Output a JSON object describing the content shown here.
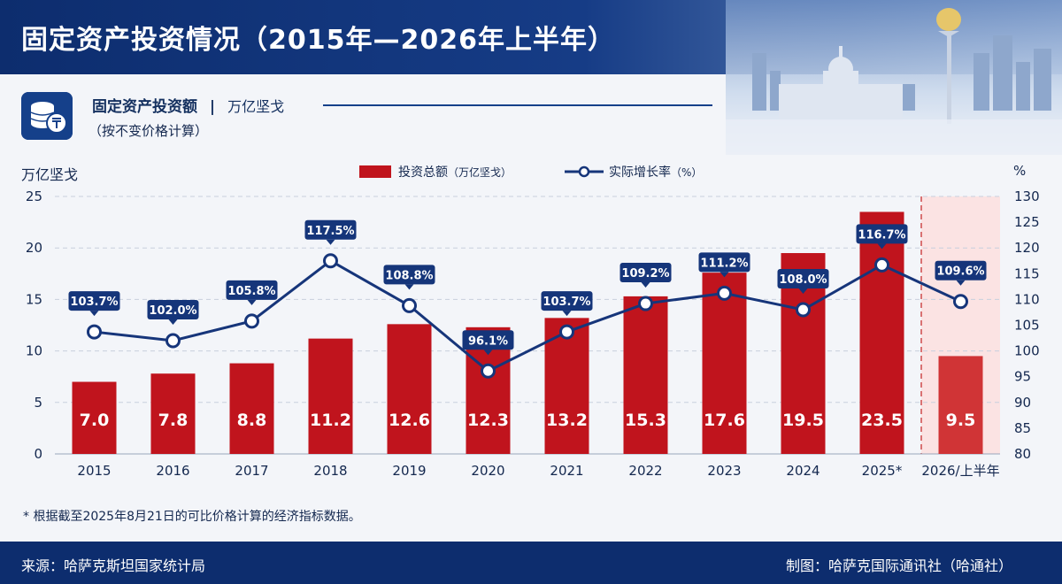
{
  "header": {
    "title": "固定资产投资情况（2015年—2026年上半年）"
  },
  "subheader": {
    "title": "固定资产投资额",
    "separator": "|",
    "unit": "万亿坚戈",
    "subtitle": "（按不变价格计算）"
  },
  "chart_data": {
    "type": "bar",
    "categories": [
      "2015",
      "2016",
      "2017",
      "2018",
      "2019",
      "2020",
      "2021",
      "2022",
      "2023",
      "2024",
      "2025*",
      "2026/上半年"
    ],
    "left_axis_unit": "万亿坚戈",
    "right_axis_unit": "%",
    "ylim": [
      0,
      25
    ],
    "yticks": [
      "0",
      "5",
      "10",
      "15",
      "20",
      "25"
    ],
    "y2lim": [
      80,
      130
    ],
    "y2ticks": [
      "80",
      "85",
      "90",
      "95",
      "100",
      "105",
      "110",
      "115",
      "120",
      "125",
      "130"
    ],
    "series": [
      {
        "name": "投资总额",
        "name_suffix": "（万亿坚戈）",
        "type": "bar",
        "color": "#c0141d",
        "values": [
          7.0,
          7.8,
          8.8,
          11.2,
          12.6,
          12.3,
          13.2,
          15.3,
          17.6,
          19.5,
          23.5,
          9.5
        ],
        "labels": [
          "7.0",
          "7.8",
          "8.8",
          "11.2",
          "12.6",
          "12.3",
          "13.2",
          "15.3",
          "17.6",
          "19.5",
          "23.5",
          "9.5"
        ]
      },
      {
        "name": "实际增长率",
        "name_suffix": "（%）",
        "type": "line",
        "color": "#16357a",
        "values": [
          103.7,
          102.0,
          105.8,
          117.5,
          108.8,
          96.1,
          103.7,
          109.2,
          111.2,
          108.0,
          116.7,
          109.6
        ],
        "labels": [
          "103.7%",
          "102.0%",
          "105.8%",
          "117.5%",
          "108.8%",
          "96.1%",
          "103.7%",
          "109.2%",
          "111.2%",
          "108.0%",
          "116.7%",
          "109.6%"
        ]
      }
    ],
    "grid": true,
    "legend": "top-center",
    "highlight_last": true
  },
  "footnote": "*  根据截至2025年8月21日的可比价格计算的经济指标数据。",
  "footer": {
    "source": "来源：哈萨克斯坦国家统计局",
    "credit": "制图：哈萨克国际通讯社（哈通社）"
  },
  "colors": {
    "navy": "#0d2d6e",
    "bar": "#c0141d",
    "line": "#16357a"
  }
}
